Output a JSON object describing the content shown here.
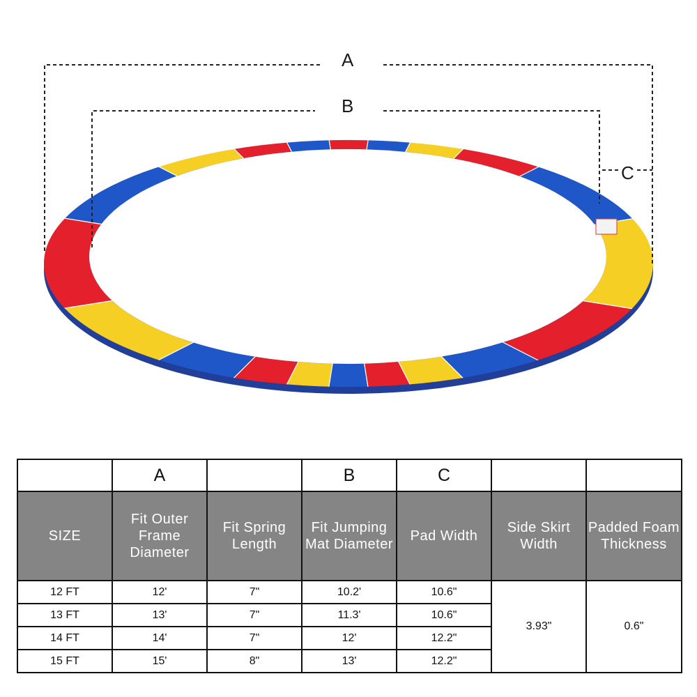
{
  "dimension_labels": {
    "a": "A",
    "b": "B",
    "c": "C"
  },
  "pad_colors": {
    "blue": "#1f56c8",
    "red": "#e3202b",
    "yellow": "#f6cf24"
  },
  "table": {
    "letters": [
      "",
      "A",
      "",
      "B",
      "C",
      "",
      ""
    ],
    "headers": [
      "SIZE",
      "Fit Outer Frame Diameter",
      "Fit Spring Length",
      "Fit Jumping Mat Diameter",
      "Pad Width",
      "Side Skirt Width",
      "Padded Foam Thickness"
    ],
    "rows": [
      {
        "size": "12 FT",
        "outer": "12'",
        "spring": "7\"",
        "mat": "10.2'",
        "pad": "10.6\""
      },
      {
        "size": "13 FT",
        "outer": "13'",
        "spring": "7\"",
        "mat": "11.3'",
        "pad": "10.6\""
      },
      {
        "size": "14 FT",
        "outer": "14'",
        "spring": "7\"",
        "mat": "12'",
        "pad": "12.2\""
      },
      {
        "size": "15 FT",
        "outer": "15'",
        "spring": "8\"",
        "mat": "13'",
        "pad": "12.2\""
      }
    ],
    "side_skirt_width": "3.93\"",
    "foam_thickness": "0.6\""
  }
}
